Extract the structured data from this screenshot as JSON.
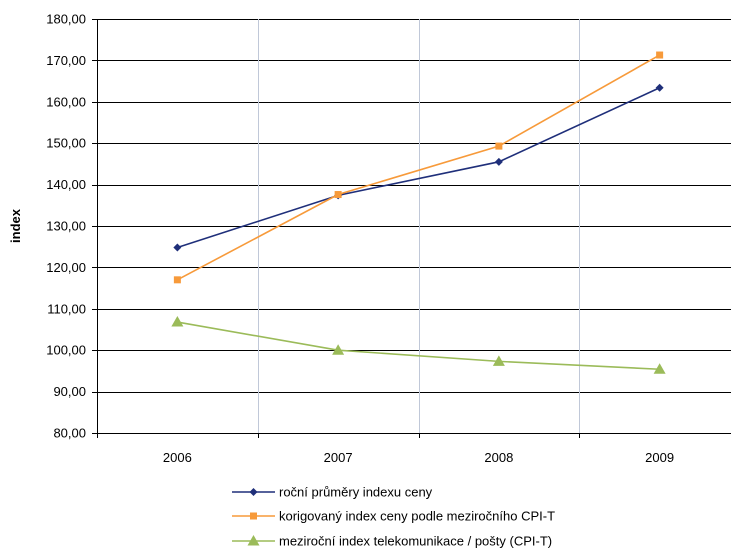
{
  "chart_data": {
    "type": "line",
    "ylabel": "index",
    "xlabel": "",
    "ylim": [
      80,
      180
    ],
    "ytick_step": 10,
    "y_tick_labels": [
      "80,00",
      "90,00",
      "100,00",
      "110,00",
      "120,00",
      "130,00",
      "140,00",
      "150,00",
      "160,00",
      "170,00",
      "180,00"
    ],
    "categories": [
      "2006",
      "2007",
      "2008",
      "2009"
    ],
    "grid": true,
    "legend_position": "bottom",
    "series": [
      {
        "name": "roční průměry indexu ceny",
        "values": [
          124.8,
          137.4,
          145.5,
          163.4
        ],
        "color": "#1f2f7a",
        "marker": "diamond"
      },
      {
        "name": "korigovaný index ceny podle meziročního CPI-T",
        "values": [
          117.0,
          137.6,
          149.3,
          171.3
        ],
        "color": "#f79a3a",
        "marker": "square"
      },
      {
        "name": "meziroční index telekomunikace / pošty (CPI-T)",
        "values": [
          106.8,
          100.0,
          97.3,
          95.4
        ],
        "color": "#9bbb59",
        "marker": "triangle"
      }
    ]
  }
}
